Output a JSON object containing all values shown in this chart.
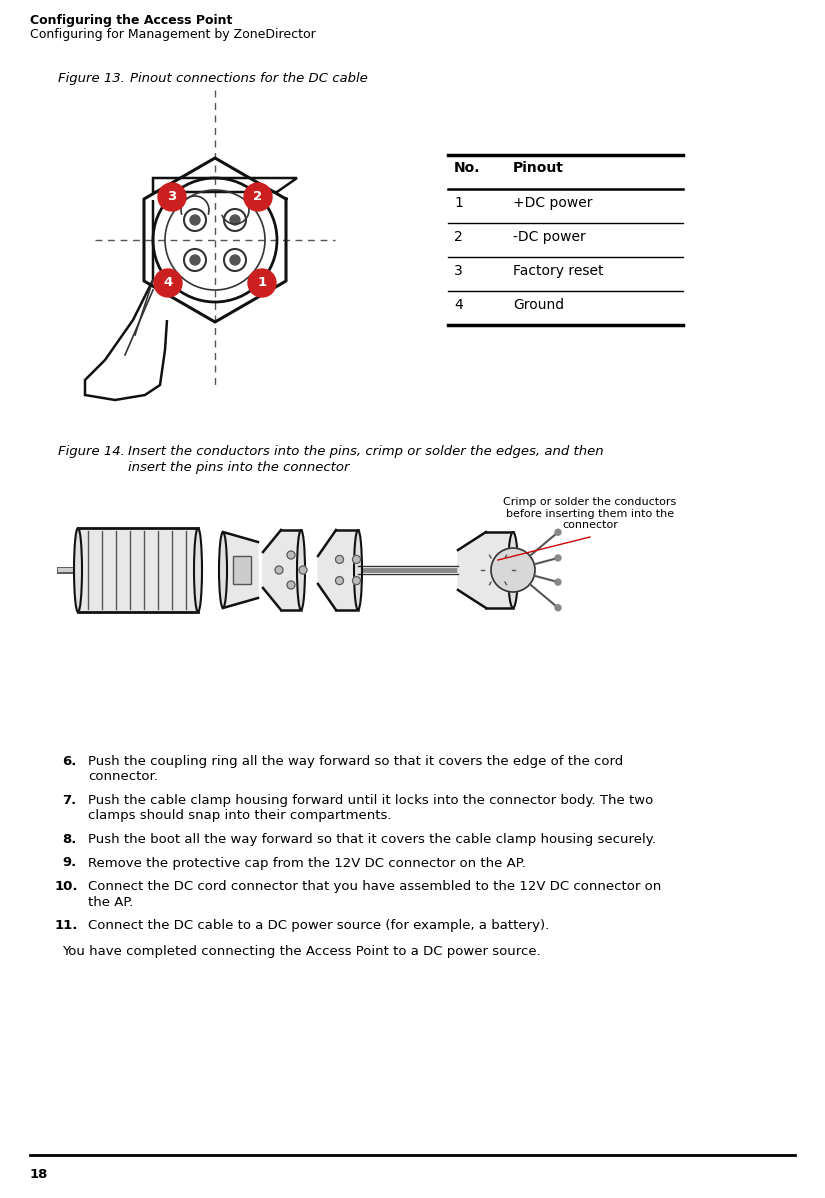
{
  "page_width": 8.25,
  "page_height": 11.98,
  "background_color": "#ffffff",
  "header_bold": "Configuring the Access Point",
  "header_normal": "Configuring for Management by ZoneDirector",
  "figure13_label": "Figure 13.",
  "figure13_title": "Pinout connections for the DC cable",
  "figure14_label": "Figure 14.",
  "figure14_title_line1": "Insert the conductors into the pins, crimp or solder the edges, and then",
  "figure14_title_line2": "insert the pins into the connector",
  "table_headers": [
    "No.",
    "Pinout"
  ],
  "table_rows": [
    [
      "1",
      "+DC power"
    ],
    [
      "2",
      "-DC power"
    ],
    [
      "3",
      "Factory reset"
    ],
    [
      "4",
      "Ground"
    ]
  ],
  "annotation": "Crimp or solder the conductors\nbefore inserting them into the\nconnector",
  "step6_num": "6.",
  "step6_text": "Push the coupling ring all the way forward so that it covers the edge of the cord\nconnector.",
  "step7_num": "7.",
  "step7_text": "Push the cable clamp housing forward until it locks into the connector body. The two\nclamps should snap into their compartments.",
  "step8_num": "8.",
  "step8_text": "Push the boot all the way forward so that it covers the cable clamp housing securely.",
  "step9_num": "9.",
  "step9_text": "Remove the protective cap from the 12V DC connector on the AP.",
  "step10_num": "10.",
  "step10_text": "Connect the DC cord connector that you have assembled to the 12V DC connector on\nthe AP.",
  "step11_num": "11.",
  "step11_text": "Connect the DC cable to a DC power source (for example, a battery).",
  "closing": "You have completed connecting the Access Point to a DC power source.",
  "page_number": "18",
  "lc": "#000000",
  "pin_red": "#cc2020"
}
